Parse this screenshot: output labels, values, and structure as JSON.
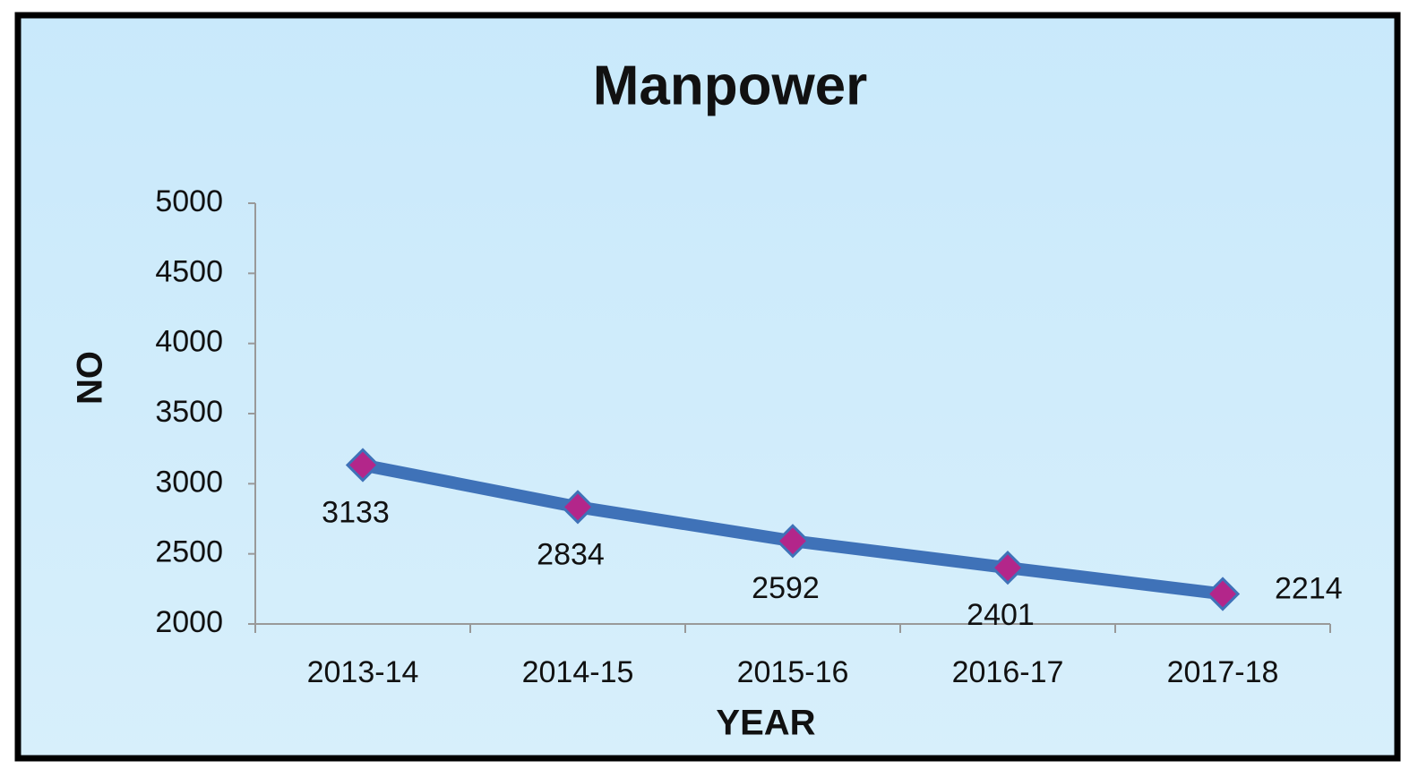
{
  "chart_data": {
    "type": "line",
    "title": "Manpower",
    "x_label": "YEAR",
    "y_label": "NO",
    "categories": [
      "2013-14",
      "2014-15",
      "2015-16",
      "2016-17",
      "2017-18"
    ],
    "series": [
      {
        "name": "Manpower",
        "color": "#3f72b8",
        "marker_color": "#b3268a",
        "values": [
          3133,
          2834,
          2592,
          2401,
          2214
        ]
      }
    ],
    "ylim": [
      2000,
      5000
    ],
    "yticks": [
      2000,
      2500,
      3000,
      3500,
      4000,
      4500,
      5000
    ],
    "grid": false,
    "legend": false
  }
}
